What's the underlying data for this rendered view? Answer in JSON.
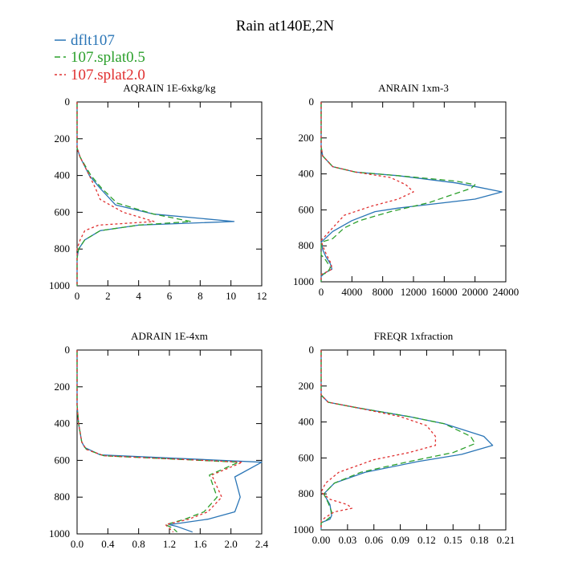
{
  "figure": {
    "title": "Rain at140E,2N"
  },
  "legend": [
    {
      "label": "dflt107",
      "color": "#2a75b6",
      "dash": ""
    },
    {
      "label": "107.splat0.5",
      "color": "#2ca02c",
      "dash": "7,4"
    },
    {
      "label": "107.splat2.0",
      "color": "#e03030",
      "dash": "3,3"
    }
  ],
  "chart_data": [
    {
      "type": "line",
      "title": "AQRAIN  1E-6xkg/kg",
      "xlim": [
        0,
        12
      ],
      "xticks": [
        0,
        2,
        4,
        6,
        8,
        10,
        12
      ],
      "xtick_labels": [
        "0",
        "2",
        "4",
        "6",
        "8",
        "10",
        "12"
      ],
      "ylim": [
        0,
        1000
      ],
      "yticks": [
        0,
        200,
        400,
        600,
        800,
        1000
      ],
      "ytick_labels": [
        "0",
        "200",
        "400",
        "600",
        "800",
        "1000"
      ],
      "y_inverted": true,
      "series": [
        {
          "name": "dflt107",
          "points": [
            [
              0,
              0
            ],
            [
              0,
              250
            ],
            [
              0.2,
              300
            ],
            [
              0.8,
              400
            ],
            [
              1.5,
              470
            ],
            [
              2.5,
              560
            ],
            [
              5,
              610
            ],
            [
              10.2,
              650
            ],
            [
              4,
              670
            ],
            [
              1.5,
              700
            ],
            [
              0.5,
              750
            ],
            [
              0.1,
              800
            ],
            [
              0,
              850
            ],
            [
              0,
              1000
            ]
          ]
        },
        {
          "name": "107.splat0.5",
          "points": [
            [
              0,
              0
            ],
            [
              0,
              250
            ],
            [
              0.2,
              300
            ],
            [
              0.9,
              400
            ],
            [
              1.6,
              470
            ],
            [
              2.6,
              550
            ],
            [
              5,
              610
            ],
            [
              7.4,
              650
            ],
            [
              4,
              670
            ],
            [
              1.5,
              700
            ],
            [
              0.5,
              750
            ],
            [
              0.1,
              800
            ],
            [
              0,
              850
            ],
            [
              0,
              1000
            ]
          ]
        },
        {
          "name": "107.splat2.0",
          "points": [
            [
              0,
              0
            ],
            [
              0,
              250
            ],
            [
              0.2,
              300
            ],
            [
              0.8,
              400
            ],
            [
              1.2,
              470
            ],
            [
              1.5,
              530
            ],
            [
              3,
              600
            ],
            [
              5,
              650
            ],
            [
              1.4,
              670
            ],
            [
              0.5,
              700
            ],
            [
              0.2,
              750
            ],
            [
              0,
              800
            ],
            [
              0,
              1000
            ]
          ]
        }
      ]
    },
    {
      "type": "line",
      "title": "ANRAIN  1xm-3",
      "xlim": [
        0,
        24000
      ],
      "xticks": [
        0,
        4000,
        8000,
        12000,
        16000,
        20000,
        24000
      ],
      "xtick_labels": [
        "0",
        "4000",
        "8000",
        "12000",
        "16000",
        "20000",
        "24000"
      ],
      "ylim": [
        0,
        1000
      ],
      "yticks": [
        0,
        200,
        400,
        600,
        800,
        1000
      ],
      "ytick_labels": [
        "0",
        "200",
        "400",
        "600",
        "800",
        "1000"
      ],
      "y_inverted": true,
      "series": [
        {
          "name": "dflt107",
          "points": [
            [
              0,
              0
            ],
            [
              0,
              250
            ],
            [
              200,
              300
            ],
            [
              1500,
              360
            ],
            [
              4500,
              390
            ],
            [
              10000,
              410
            ],
            [
              17500,
              450
            ],
            [
              20000,
              470
            ],
            [
              23500,
              500
            ],
            [
              20000,
              540
            ],
            [
              10000,
              590
            ],
            [
              7000,
              610
            ],
            [
              4000,
              660
            ],
            [
              1500,
              720
            ],
            [
              0,
              780
            ],
            [
              200,
              820
            ],
            [
              600,
              860
            ],
            [
              1200,
              900
            ],
            [
              1400,
              930
            ],
            [
              500,
              950
            ],
            [
              0,
              970
            ],
            [
              0,
              1000
            ]
          ]
        },
        {
          "name": "107.splat0.5",
          "points": [
            [
              0,
              0
            ],
            [
              0,
              250
            ],
            [
              200,
              300
            ],
            [
              1500,
              360
            ],
            [
              4500,
              390
            ],
            [
              10000,
              410
            ],
            [
              17500,
              440
            ],
            [
              20000,
              460
            ],
            [
              19500,
              480
            ],
            [
              14000,
              560
            ],
            [
              9000,
              610
            ],
            [
              5000,
              660
            ],
            [
              3000,
              700
            ],
            [
              1500,
              760
            ],
            [
              0,
              780
            ],
            [
              0,
              850
            ],
            [
              600,
              880
            ],
            [
              1200,
              920
            ],
            [
              800,
              950
            ],
            [
              0,
              960
            ],
            [
              0,
              1000
            ]
          ]
        },
        {
          "name": "107.splat2.0",
          "points": [
            [
              0,
              0
            ],
            [
              0,
              250
            ],
            [
              200,
              300
            ],
            [
              1500,
              360
            ],
            [
              4500,
              390
            ],
            [
              9000,
              420
            ],
            [
              11000,
              460
            ],
            [
              12000,
              500
            ],
            [
              10000,
              540
            ],
            [
              6500,
              580
            ],
            [
              3000,
              630
            ],
            [
              1500,
              700
            ],
            [
              0,
              770
            ],
            [
              200,
              800
            ],
            [
              700,
              850
            ],
            [
              1300,
              900
            ],
            [
              1400,
              930
            ],
            [
              500,
              950
            ],
            [
              0,
              960
            ],
            [
              0,
              1000
            ]
          ]
        }
      ]
    },
    {
      "type": "line",
      "title": "ADRAIN  1E-4xm",
      "xlim": [
        0,
        2.4
      ],
      "xticks": [
        0,
        0.4,
        0.8,
        1.2,
        1.6,
        2.0,
        2.4
      ],
      "xtick_labels": [
        "0.0",
        "0.4",
        "0.8",
        "1.2",
        "1.6",
        "2.0",
        "2.4"
      ],
      "ylim": [
        0,
        1000
      ],
      "yticks": [
        0,
        200,
        400,
        600,
        800,
        1000
      ],
      "ytick_labels": [
        "0",
        "200",
        "400",
        "600",
        "800",
        "1000"
      ],
      "y_inverted": true,
      "series": [
        {
          "name": "dflt107",
          "points": [
            [
              0,
              0
            ],
            [
              0,
              300
            ],
            [
              0.02,
              400
            ],
            [
              0.06,
              500
            ],
            [
              0.1,
              530
            ],
            [
              0.3,
              570
            ],
            [
              2.4,
              610
            ],
            [
              2.05,
              690
            ],
            [
              2.12,
              800
            ],
            [
              2.05,
              880
            ],
            [
              1.7,
              920
            ],
            [
              1.2,
              950
            ],
            [
              1.3,
              960
            ],
            [
              1.5,
              990
            ]
          ]
        },
        {
          "name": "107.splat0.5",
          "points": [
            [
              0,
              0
            ],
            [
              0,
              300
            ],
            [
              0.02,
              400
            ],
            [
              0.06,
              500
            ],
            [
              0.12,
              540
            ],
            [
              0.35,
              575
            ],
            [
              2.1,
              610
            ],
            [
              1.72,
              680
            ],
            [
              1.82,
              800
            ],
            [
              1.65,
              880
            ],
            [
              1.4,
              920
            ],
            [
              1.15,
              950
            ],
            [
              1.25,
              970
            ],
            [
              1.3,
              990
            ]
          ]
        },
        {
          "name": "107.splat2.0",
          "points": [
            [
              0,
              0
            ],
            [
              0,
              300
            ],
            [
              0.02,
              400
            ],
            [
              0.06,
              500
            ],
            [
              0.12,
              540
            ],
            [
              0.35,
              575
            ],
            [
              2.15,
              610
            ],
            [
              1.75,
              680
            ],
            [
              1.88,
              800
            ],
            [
              1.7,
              880
            ],
            [
              1.45,
              920
            ],
            [
              1.15,
              950
            ],
            [
              1.2,
              970
            ],
            [
              1.25,
              990
            ]
          ]
        }
      ]
    },
    {
      "type": "line",
      "title": "FREQR  1xfraction",
      "xlim": [
        0,
        0.21
      ],
      "xticks": [
        0,
        0.03,
        0.06,
        0.09,
        0.12,
        0.15,
        0.18,
        0.21
      ],
      "xtick_labels": [
        "0.00",
        "0.03",
        "0.06",
        "0.09",
        "0.12",
        "0.15",
        "0.18",
        "0.21"
      ],
      "ylim": [
        0,
        1000
      ],
      "yticks": [
        0,
        200,
        400,
        600,
        800,
        1000
      ],
      "ytick_labels": [
        "0",
        "200",
        "400",
        "600",
        "800",
        "1000"
      ],
      "y_inverted": true,
      "series": [
        {
          "name": "dflt107",
          "points": [
            [
              0,
              0
            ],
            [
              0,
              250
            ],
            [
              0.008,
              290
            ],
            [
              0.04,
              320
            ],
            [
              0.1,
              370
            ],
            [
              0.14,
              410
            ],
            [
              0.185,
              480
            ],
            [
              0.195,
              530
            ],
            [
              0.16,
              580
            ],
            [
              0.11,
              620
            ],
            [
              0.05,
              680
            ],
            [
              0.015,
              740
            ],
            [
              0.003,
              800
            ],
            [
              0.01,
              860
            ],
            [
              0.012,
              920
            ],
            [
              0.01,
              940
            ],
            [
              0,
              960
            ],
            [
              0,
              1000
            ]
          ]
        },
        {
          "name": "107.splat0.5",
          "points": [
            [
              0,
              0
            ],
            [
              0,
              250
            ],
            [
              0.008,
              290
            ],
            [
              0.04,
              320
            ],
            [
              0.1,
              370
            ],
            [
              0.14,
              410
            ],
            [
              0.17,
              480
            ],
            [
              0.175,
              520
            ],
            [
              0.15,
              570
            ],
            [
              0.1,
              620
            ],
            [
              0.045,
              680
            ],
            [
              0.015,
              740
            ],
            [
              0.003,
              800
            ],
            [
              0.008,
              850
            ],
            [
              0.012,
              900
            ],
            [
              0.01,
              930
            ],
            [
              0.005,
              950
            ],
            [
              0,
              960
            ],
            [
              0,
              1000
            ]
          ]
        },
        {
          "name": "107.splat2.0",
          "points": [
            [
              0,
              0
            ],
            [
              0,
              250
            ],
            [
              0.008,
              290
            ],
            [
              0.04,
              320
            ],
            [
              0.09,
              370
            ],
            [
              0.12,
              420
            ],
            [
              0.13,
              480
            ],
            [
              0.13,
              530
            ],
            [
              0.1,
              570
            ],
            [
              0.06,
              610
            ],
            [
              0.02,
              680
            ],
            [
              0.005,
              740
            ],
            [
              0,
              790
            ],
            [
              0.01,
              830
            ],
            [
              0.03,
              860
            ],
            [
              0.035,
              880
            ],
            [
              0.015,
              900
            ],
            [
              0.005,
              930
            ],
            [
              0,
              950
            ],
            [
              0,
              1000
            ]
          ]
        }
      ]
    }
  ]
}
